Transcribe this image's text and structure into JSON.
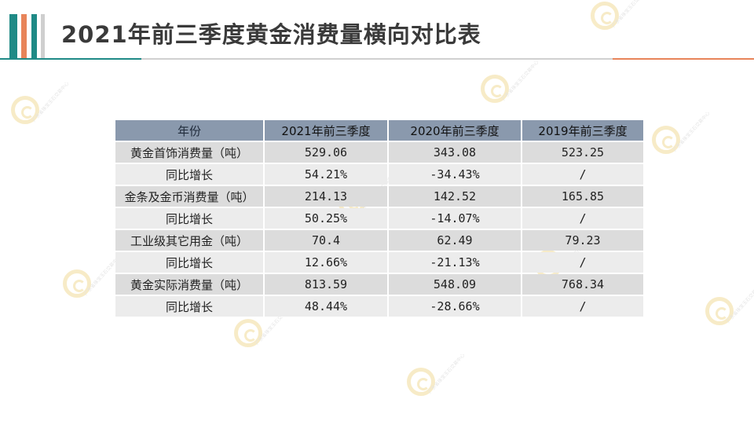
{
  "title": "2021年前三季度黄金消费量横向对比表",
  "colors": {
    "teal": "#1f8a86",
    "orange": "#e8845a",
    "table_header": "#8a99ad",
    "row_shade": "#dcdcdc",
    "row_light": "#ececec"
  },
  "watermark": {
    "icon": "gold-exchange-logo-icon",
    "text": "广东省珠宝玉石交易中心"
  },
  "table": {
    "headers": [
      "年份",
      "2021年前三季度",
      "2020年前三季度",
      "2019年前三季度"
    ],
    "rows": [
      [
        "黄金首饰消费量（吨）",
        "529.06",
        "343.08",
        "523.25"
      ],
      [
        "同比增长",
        "54.21%",
        "-34.43%",
        "/"
      ],
      [
        "金条及金币消费量（吨）",
        "214.13",
        "142.52",
        "165.85"
      ],
      [
        "同比增长",
        "50.25%",
        "-14.07%",
        "/"
      ],
      [
        "工业级其它用金（吨）",
        "70.4",
        "62.49",
        "79.23"
      ],
      [
        "同比增长",
        "12.66%",
        "-21.13%",
        "/"
      ],
      [
        "黄金实际消费量（吨）",
        "813.59",
        "548.09",
        "768.34"
      ],
      [
        "同比增长",
        "48.44%",
        "-28.66%",
        "/"
      ]
    ]
  }
}
